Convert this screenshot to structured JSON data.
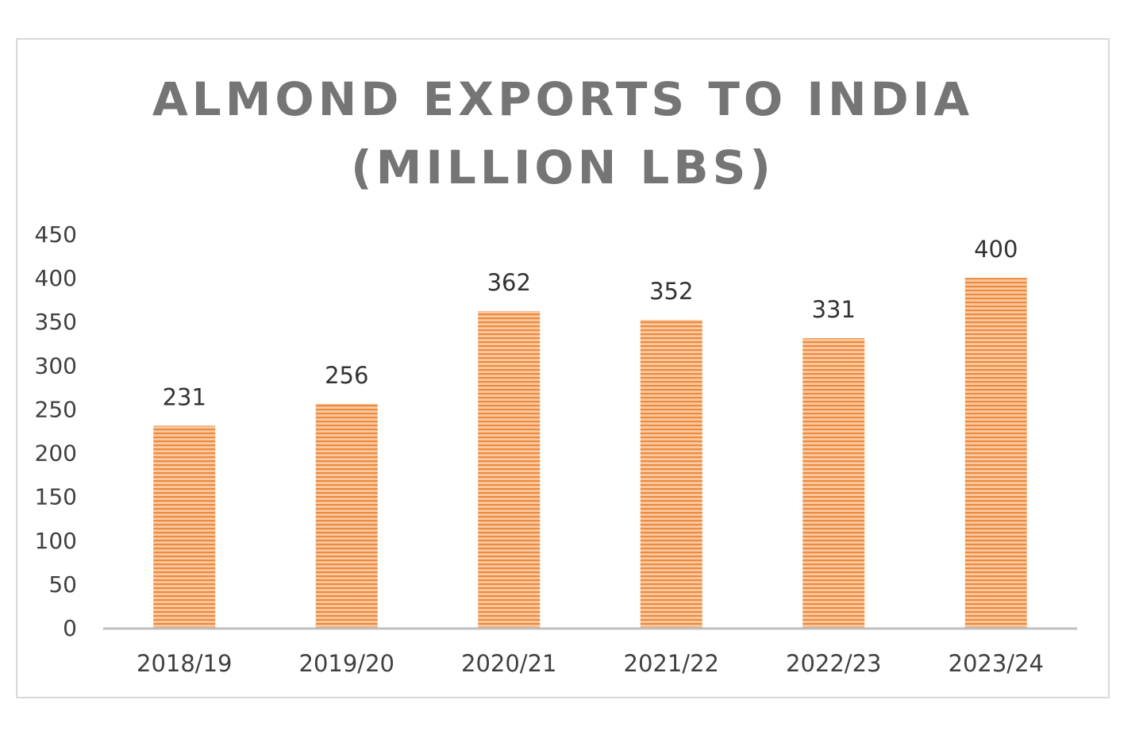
{
  "chart_data": {
    "type": "bar",
    "title_line1": "ALMOND EXPORTS TO INDIA",
    "title_line2": "(MILLION LBS)",
    "categories": [
      "2018/19",
      "2019/20",
      "2020/21",
      "2021/22",
      "2022/23",
      "2023/24"
    ],
    "values": [
      231,
      256,
      362,
      352,
      331,
      400
    ],
    "data_labels": [
      "231",
      "256",
      "362",
      "352",
      "331",
      "400"
    ],
    "y_ticks": [
      "0",
      "50",
      "100",
      "150",
      "200",
      "250",
      "300",
      "350",
      "400",
      "450"
    ],
    "ylim": [
      0,
      450
    ],
    "xlabel": "",
    "ylabel": "",
    "grid": false,
    "legend": "none",
    "colors": {
      "bar": "#f4b183",
      "bar_stripe": "#ed7d31",
      "axis": "#bfbfbf",
      "title": "#757575",
      "frame": "#d9d9d9"
    }
  }
}
